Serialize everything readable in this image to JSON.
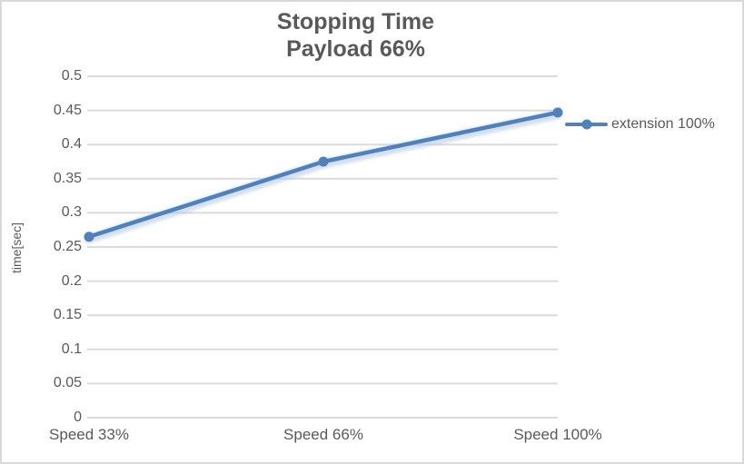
{
  "chart_data": {
    "type": "line",
    "title": "Stopping Time",
    "subtitle": "Payload 66%",
    "categories": [
      "Speed 33%",
      "Speed 66%",
      "Speed 100%"
    ],
    "series": [
      {
        "name": "extension 100%",
        "values": [
          0.265,
          0.375,
          0.447
        ],
        "color": "#4f81bd"
      }
    ],
    "xlabel": "",
    "ylabel": "time[sec]",
    "ylim": [
      0,
      0.5
    ],
    "ytick_step": 0.05,
    "ytick_labels": [
      "0",
      "0.05",
      "0.1",
      "0.15",
      "0.2",
      "0.25",
      "0.3",
      "0.35",
      "0.4",
      "0.45",
      "0.5"
    ],
    "grid": "horizontal",
    "legend_position": "right",
    "marker": "circle"
  },
  "colors": {
    "accent": "#4f81bd",
    "halo": "#adc7e5",
    "gridline": "#dbdbdb",
    "axis_text": "#595959",
    "border": "#d9d9d9"
  }
}
